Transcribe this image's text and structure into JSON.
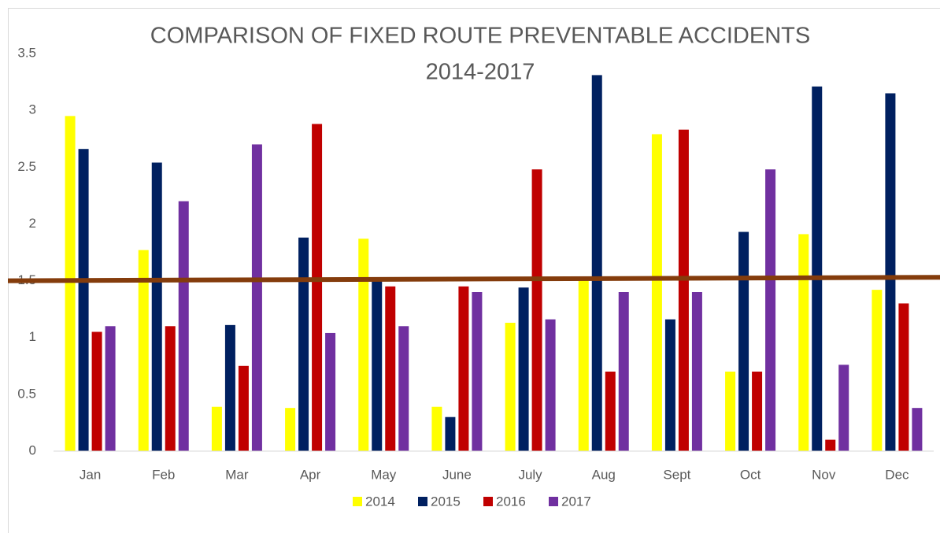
{
  "chart_data": {
    "type": "bar",
    "title": "COMPARISON OF FIXED ROUTE PREVENTABLE ACCIDENTS",
    "subtitle": "2014-2017",
    "categories": [
      "Jan",
      "Feb",
      "Mar",
      "Apr",
      "May",
      "June",
      "July",
      "Aug",
      "Sept",
      "Oct",
      "Nov",
      "Dec"
    ],
    "series": [
      {
        "name": "2014",
        "color": "#FFFF00",
        "values": [
          2.95,
          1.77,
          0.39,
          0.38,
          1.87,
          0.39,
          1.13,
          1.5,
          2.79,
          0.7,
          1.91,
          1.42
        ]
      },
      {
        "name": "2015",
        "color": "#002060",
        "values": [
          2.66,
          2.54,
          1.11,
          1.88,
          1.51,
          0.3,
          1.44,
          3.31,
          1.16,
          1.93,
          3.21,
          3.15
        ]
      },
      {
        "name": "2016",
        "color": "#C00000",
        "values": [
          1.05,
          1.1,
          0.75,
          2.88,
          1.45,
          1.45,
          2.48,
          0.7,
          2.83,
          0.7,
          0.1,
          1.3
        ]
      },
      {
        "name": "2017",
        "color": "#7030A0",
        "values": [
          1.1,
          2.2,
          2.7,
          1.04,
          1.1,
          1.4,
          1.16,
          1.4,
          1.4,
          2.48,
          0.76,
          0.38
        ]
      }
    ],
    "reference_line": {
      "color": "#843C0C",
      "values": [
        1.5,
        1.53
      ]
    },
    "ylim": [
      0,
      3.5
    ],
    "yticks": [
      0,
      0.5,
      1,
      1.5,
      2,
      2.5,
      3,
      3.5
    ],
    "grid": false,
    "legend": "bottom"
  }
}
